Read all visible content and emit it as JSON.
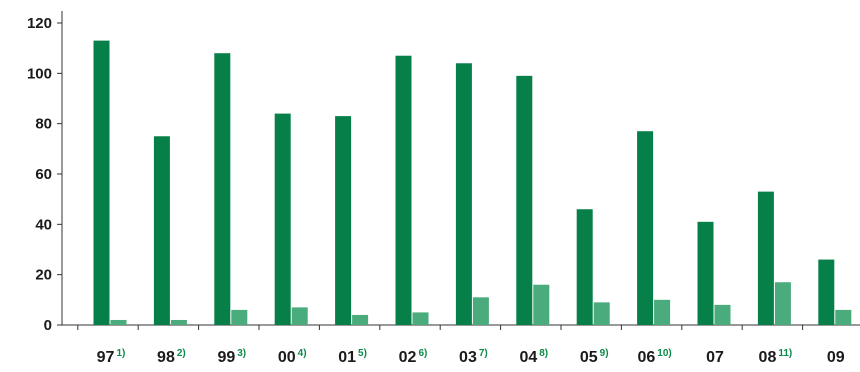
{
  "chart_data": {
    "type": "bar",
    "categories": [
      "97",
      "98",
      "99",
      "00",
      "01",
      "02",
      "03",
      "04",
      "05",
      "06",
      "07",
      "08",
      "09"
    ],
    "footnotes": [
      "1)",
      "2)",
      "3)",
      "4)",
      "5)",
      "6)",
      "7)",
      "8)",
      "9)",
      "10)",
      "",
      "11)",
      ""
    ],
    "series": [
      {
        "values": [
          113,
          75,
          108,
          84,
          83,
          107,
          104,
          99,
          46,
          77,
          41,
          53,
          26
        ]
      },
      {
        "values": [
          2,
          2,
          6,
          7,
          4,
          5,
          11,
          16,
          9,
          10,
          8,
          17,
          6
        ]
      }
    ],
    "title": "",
    "xlabel": "",
    "ylabel": "",
    "ylim": [
      0,
      120
    ],
    "yticks": [
      "0",
      "20",
      "40",
      "60",
      "80",
      "100",
      "120"
    ],
    "grid": false,
    "legend": "none",
    "colors": {
      "series_primary": "#068048",
      "series_secondary": "#4aab7c",
      "footnote": "#0a8a4a",
      "axis": "#333333"
    }
  }
}
